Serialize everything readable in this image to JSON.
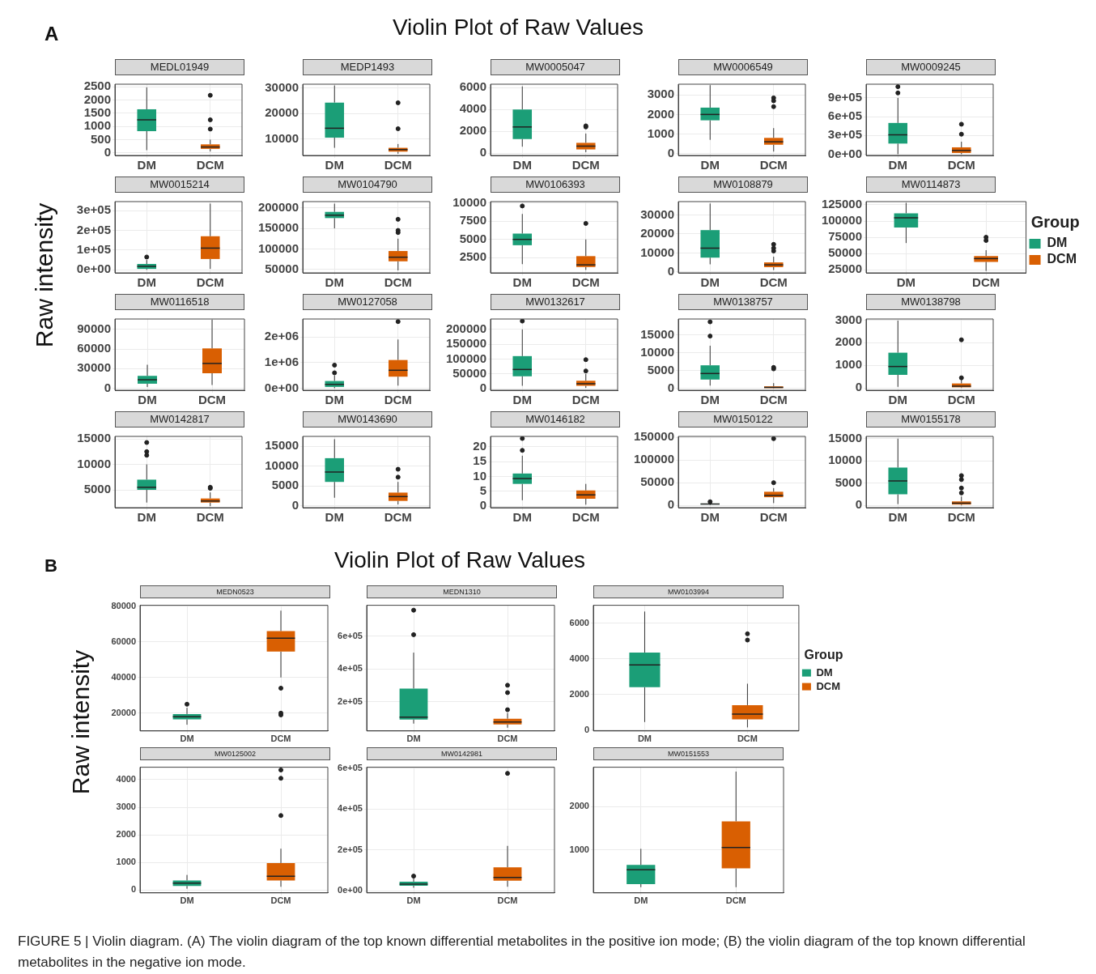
{
  "chart_data": [
    {
      "type": "box",
      "title": "MEDL01949",
      "annotations": [
        "A",
        "Violin Plot of Raw Values"
      ],
      "ylabel": "Raw intensity",
      "categories": [
        "DM",
        "DCM"
      ],
      "grid": true,
      "ylim": [
        -100,
        2600
      ],
      "yticks": [
        0,
        500,
        1000,
        1500,
        2000,
        2500
      ],
      "series": [
        {
          "color": "#1b9e77",
          "boxes": [
            {
              "low": 100,
              "q1": 820,
              "median": 1250,
              "q3": 1650,
              "high": 2480
            },
            null
          ]
        },
        {
          "color": "#d95f02",
          "boxes": [
            null,
            {
              "low": 50,
              "q1": 150,
              "median": 220,
              "q3": 320,
              "high": 500,
              "outliers": [
                900,
                1250,
                2180
              ]
            }
          ]
        }
      ]
    },
    {
      "type": "box",
      "title": "MEDP1493",
      "categories": [
        "DM",
        "DCM"
      ],
      "grid": true,
      "ylim": [
        3500,
        31500
      ],
      "yticks": [
        10000,
        20000,
        30000
      ],
      "series": [
        {
          "color": "#1b9e77",
          "boxes": [
            {
              "low": 6500,
              "q1": 10500,
              "median": 14200,
              "q3": 24300,
              "high": 31000
            },
            null
          ]
        },
        {
          "color": "#d95f02",
          "boxes": [
            null,
            {
              "low": 4200,
              "q1": 5000,
              "median": 5800,
              "q3": 6500,
              "high": 8000,
              "outliers": [
                14000,
                24200
              ]
            }
          ]
        }
      ]
    },
    {
      "type": "box",
      "title": "MW0005047",
      "categories": [
        "DM",
        "DCM"
      ],
      "grid": true,
      "ylim": [
        -200,
        6300
      ],
      "yticks": [
        0,
        2000,
        4000,
        6000
      ],
      "series": [
        {
          "color": "#1b9e77",
          "boxes": [
            {
              "low": 600,
              "q1": 1300,
              "median": 2400,
              "q3": 4000,
              "high": 6100
            },
            null
          ]
        },
        {
          "color": "#d95f02",
          "boxes": [
            null,
            {
              "low": 100,
              "q1": 350,
              "median": 650,
              "q3": 950,
              "high": 1800,
              "outliers": [
                2400,
                2500
              ]
            }
          ]
        }
      ]
    },
    {
      "type": "box",
      "title": "MW0006549",
      "categories": [
        "DM",
        "DCM"
      ],
      "grid": true,
      "ylim": [
        -100,
        3550
      ],
      "yticks": [
        0,
        1000,
        2000,
        3000
      ],
      "series": [
        {
          "color": "#1b9e77",
          "boxes": [
            {
              "low": 700,
              "q1": 1700,
              "median": 2000,
              "q3": 2350,
              "high": 3500
            },
            null
          ]
        },
        {
          "color": "#d95f02",
          "boxes": [
            null,
            {
              "low": 100,
              "q1": 450,
              "median": 600,
              "q3": 800,
              "high": 1300,
              "outliers": [
                2400,
                2700,
                2850
              ]
            }
          ]
        }
      ]
    },
    {
      "type": "box",
      "title": "MW0009245",
      "categories": [
        "DM",
        "DCM"
      ],
      "grid": true,
      "ylim": [
        -20000,
        1120000
      ],
      "yticks": [
        {
          "value": 0,
          "label": "0e+00"
        },
        {
          "value": 300000,
          "label": "3e+05"
        },
        {
          "value": 600000,
          "label": "6e+05"
        },
        {
          "value": 900000,
          "label": "9e+05"
        }
      ],
      "series": [
        {
          "color": "#1b9e77",
          "boxes": [
            {
              "low": 0,
              "q1": 170000,
              "median": 310000,
              "q3": 500000,
              "high": 900000,
              "outliers": [
                980000,
                1080000
              ]
            },
            null
          ]
        },
        {
          "color": "#d95f02",
          "boxes": [
            null,
            {
              "low": 0,
              "q1": 20000,
              "median": 60000,
              "q3": 110000,
              "high": 200000,
              "outliers": [
                320000,
                480000
              ]
            }
          ]
        }
      ]
    },
    {
      "type": "box",
      "title": "MW0015214",
      "categories": [
        "DM",
        "DCM"
      ],
      "grid": true,
      "ylim": [
        -15000,
        345000
      ],
      "yticks": [
        {
          "value": 0,
          "label": "0e+00"
        },
        {
          "value": 100000,
          "label": "1e+05"
        },
        {
          "value": 200000,
          "label": "2e+05"
        },
        {
          "value": 300000,
          "label": "3e+05"
        }
      ],
      "series": [
        {
          "color": "#1b9e77",
          "boxes": [
            {
              "low": 0,
              "q1": 5000,
              "median": 18000,
              "q3": 30000,
              "high": 50000,
              "outliers": [
                65000
              ]
            },
            null
          ]
        },
        {
          "color": "#d95f02",
          "boxes": [
            null,
            {
              "low": 5000,
              "q1": 55000,
              "median": 110000,
              "q3": 170000,
              "high": 335000
            }
          ]
        }
      ]
    },
    {
      "type": "box",
      "title": "MW0104790",
      "categories": [
        "DM",
        "DCM"
      ],
      "grid": true,
      "ylim": [
        42000,
        215000
      ],
      "yticks": [
        50000,
        100000,
        150000,
        200000
      ],
      "series": [
        {
          "color": "#1b9e77",
          "boxes": [
            {
              "low": 150000,
              "q1": 175000,
              "median": 182000,
              "q3": 190000,
              "high": 210000
            },
            null
          ]
        },
        {
          "color": "#d95f02",
          "boxes": [
            null,
            {
              "low": 48000,
              "q1": 70000,
              "median": 80000,
              "q3": 95000,
              "high": 125000,
              "outliers": [
                140000,
                145000,
                172000
              ]
            }
          ]
        }
      ]
    },
    {
      "type": "box",
      "title": "MW0106393",
      "categories": [
        "DM",
        "DCM"
      ],
      "grid": true,
      "ylim": [
        400,
        10200
      ],
      "yticks": [
        2500,
        5000,
        7500,
        10000
      ],
      "series": [
        {
          "color": "#1b9e77",
          "boxes": [
            {
              "low": 1600,
              "q1": 4200,
              "median": 5000,
              "q3": 5800,
              "high": 8500,
              "outliers": [
                9600
              ]
            },
            null
          ]
        },
        {
          "color": "#d95f02",
          "boxes": [
            null,
            {
              "low": 800,
              "q1": 1200,
              "median": 1500,
              "q3": 2700,
              "high": 5000,
              "outliers": [
                7200
              ]
            }
          ]
        }
      ]
    },
    {
      "type": "box",
      "title": "MW0108879",
      "categories": [
        "DM",
        "DCM"
      ],
      "grid": true,
      "ylim": [
        -500,
        37000
      ],
      "yticks": [
        0,
        10000,
        20000,
        30000
      ],
      "series": [
        {
          "color": "#1b9e77",
          "boxes": [
            {
              "low": 4000,
              "q1": 7500,
              "median": 12500,
              "q3": 22000,
              "high": 36000
            },
            null
          ]
        },
        {
          "color": "#d95f02",
          "boxes": [
            null,
            {
              "low": 1000,
              "q1": 2500,
              "median": 3700,
              "q3": 5000,
              "high": 8000,
              "outliers": [
                11000,
                12500,
                14500
              ]
            }
          ]
        }
      ]
    },
    {
      "type": "box",
      "title": "MW0114873",
      "legend": "right",
      "legend_title": "Group",
      "categories": [
        "DM",
        "DCM"
      ],
      "grid": true,
      "ylim": [
        20000,
        130000
      ],
      "yticks": [
        25000,
        50000,
        75000,
        100000,
        125000
      ],
      "series": [
        {
          "name": "DM",
          "color": "#1b9e77",
          "boxes": [
            {
              "low": 66000,
              "q1": 90000,
              "median": 105000,
              "q3": 112000,
              "high": 128000
            },
            null
          ]
        },
        {
          "name": "DCM",
          "color": "#d95f02",
          "boxes": [
            null,
            {
              "low": 23000,
              "q1": 37000,
              "median": 42000,
              "q3": 46000,
              "high": 55000,
              "outliers": [
                70000,
                75000
              ]
            }
          ]
        }
      ]
    },
    {
      "type": "box",
      "title": "MW0116518",
      "categories": [
        "DM",
        "DCM"
      ],
      "grid": true,
      "ylim": [
        -3000,
        106000
      ],
      "yticks": [
        0,
        30000,
        60000,
        90000
      ],
      "series": [
        {
          "color": "#1b9e77",
          "boxes": [
            {
              "low": 2000,
              "q1": 7000,
              "median": 13000,
              "q3": 19000,
              "high": 36000
            },
            null
          ]
        },
        {
          "color": "#d95f02",
          "boxes": [
            null,
            {
              "low": 5000,
              "q1": 23000,
              "median": 38000,
              "q3": 61000,
              "high": 105000
            }
          ]
        }
      ]
    },
    {
      "type": "box",
      "title": "MW0127058",
      "categories": [
        "DM",
        "DCM"
      ],
      "grid": true,
      "ylim": [
        -80000,
        2700000
      ],
      "yticks": [
        {
          "value": 0,
          "label": "0e+00"
        },
        {
          "value": 1000000,
          "label": "1e+06"
        },
        {
          "value": 2000000,
          "label": "2e+06"
        }
      ],
      "series": [
        {
          "color": "#1b9e77",
          "boxes": [
            {
              "low": 0,
              "q1": 50000,
              "median": 150000,
              "q3": 280000,
              "high": 500000,
              "outliers": [
                600000,
                900000
              ]
            },
            null
          ]
        },
        {
          "color": "#d95f02",
          "boxes": [
            null,
            {
              "low": 100000,
              "q1": 450000,
              "median": 700000,
              "q3": 1100000,
              "high": 1900000,
              "outliers": [
                2600000
              ]
            }
          ]
        }
      ]
    },
    {
      "type": "box",
      "title": "MW0132617",
      "categories": [
        "DM",
        "DCM"
      ],
      "grid": true,
      "ylim": [
        -5000,
        235000
      ],
      "yticks": [
        0,
        50000,
        100000,
        150000,
        200000
      ],
      "series": [
        {
          "color": "#1b9e77",
          "boxes": [
            {
              "low": 10000,
              "q1": 42000,
              "median": 65000,
              "q3": 110000,
              "high": 200000,
              "outliers": [
                228000
              ]
            },
            null
          ]
        },
        {
          "color": "#d95f02",
          "boxes": [
            null,
            {
              "low": 3000,
              "q1": 10000,
              "median": 17000,
              "q3": 27000,
              "high": 50000,
              "outliers": [
                60000,
                98000
              ]
            }
          ]
        }
      ]
    },
    {
      "type": "box",
      "title": "MW0138757",
      "categories": [
        "DM",
        "DCM"
      ],
      "grid": true,
      "ylim": [
        -500,
        19500
      ],
      "yticks": [
        0,
        5000,
        10000,
        15000
      ],
      "series": [
        {
          "color": "#1b9e77",
          "boxes": [
            {
              "low": 800,
              "q1": 2500,
              "median": 4200,
              "q3": 6500,
              "high": 12000,
              "outliers": [
                14700,
                18700
              ]
            },
            null
          ]
        },
        {
          "color": "#d95f02",
          "boxes": [
            null,
            {
              "low": 0,
              "q1": 100,
              "median": 300,
              "q3": 600,
              "high": 1500,
              "outliers": [
                5500,
                5900
              ]
            }
          ]
        }
      ]
    },
    {
      "type": "box",
      "title": "MW0138798",
      "categories": [
        "DM",
        "DCM"
      ],
      "grid": true,
      "ylim": [
        -100,
        3050
      ],
      "yticks": [
        0,
        1000,
        2000,
        3000
      ],
      "series": [
        {
          "color": "#1b9e77",
          "boxes": [
            {
              "low": 50,
              "q1": 580,
              "median": 950,
              "q3": 1560,
              "high": 2980
            },
            null
          ]
        },
        {
          "color": "#d95f02",
          "boxes": [
            null,
            {
              "low": 0,
              "q1": 30,
              "median": 80,
              "q3": 200,
              "high": 400,
              "outliers": [
                450,
                2130
              ]
            }
          ]
        }
      ]
    },
    {
      "type": "box",
      "title": "MW0142817",
      "categories": [
        "DM",
        "DCM"
      ],
      "grid": true,
      "ylim": [
        1500,
        15500
      ],
      "yticks": [
        5000,
        10000,
        15000
      ],
      "series": [
        {
          "color": "#1b9e77",
          "boxes": [
            {
              "low": 2500,
              "q1": 5000,
              "median": 5500,
              "q3": 7000,
              "high": 10000,
              "outliers": [
                11800,
                12500,
                14300
              ]
            },
            null
          ]
        },
        {
          "color": "#d95f02",
          "boxes": [
            null,
            {
              "low": 1800,
              "q1": 2500,
              "median": 2800,
              "q3": 3300,
              "high": 4500,
              "outliers": [
                5300,
                5500
              ]
            }
          ]
        }
      ]
    },
    {
      "type": "box",
      "title": "MW0143690",
      "categories": [
        "DM",
        "DCM"
      ],
      "grid": true,
      "ylim": [
        -500,
        17500
      ],
      "yticks": [
        0,
        5000,
        10000,
        15000
      ],
      "series": [
        {
          "color": "#1b9e77",
          "boxes": [
            {
              "low": 2000,
              "q1": 6000,
              "median": 8500,
              "q3": 12000,
              "high": 16800
            },
            null
          ]
        },
        {
          "color": "#d95f02",
          "boxes": [
            null,
            {
              "low": 300,
              "q1": 1200,
              "median": 2300,
              "q3": 3300,
              "high": 6000,
              "outliers": [
                7200,
                9200
              ]
            }
          ]
        }
      ]
    },
    {
      "type": "box",
      "title": "MW0146182",
      "categories": [
        "DM",
        "DCM"
      ],
      "grid": true,
      "ylim": [
        -0.5,
        23.5
      ],
      "yticks": [
        0,
        5,
        10,
        15,
        20
      ],
      "series": [
        {
          "color": "#1b9e77",
          "boxes": [
            {
              "low": 2,
              "q1": 7.5,
              "median": 9.3,
              "q3": 11,
              "high": 17,
              "outliers": [
                18.8,
                22.8
              ]
            },
            null
          ]
        },
        {
          "color": "#d95f02",
          "boxes": [
            null,
            {
              "low": 0.5,
              "q1": 2.5,
              "median": 3.8,
              "q3": 5.3,
              "high": 7.5
            }
          ]
        }
      ]
    },
    {
      "type": "box",
      "title": "MW0150122",
      "categories": [
        "DM",
        "DCM"
      ],
      "grid": true,
      "ylim": [
        -5000,
        152000
      ],
      "yticks": [
        0,
        50000,
        100000,
        150000
      ],
      "series": [
        {
          "color": "#1b9e77",
          "boxes": [
            {
              "low": 500,
              "q1": 2000,
              "median": 3000,
              "q3": 4000,
              "high": 4000,
              "outliers": [
                8000
              ]
            },
            null
          ]
        },
        {
          "color": "#d95f02",
          "boxes": [
            null,
            {
              "low": 5000,
              "q1": 18000,
              "median": 22000,
              "q3": 30000,
              "high": 38000,
              "outliers": [
                50000,
                147000
              ]
            }
          ]
        }
      ]
    },
    {
      "type": "box",
      "title": "MW0155178",
      "categories": [
        "DM",
        "DCM"
      ],
      "grid": true,
      "ylim": [
        -500,
        15500
      ],
      "yticks": [
        0,
        5000,
        10000,
        15000
      ],
      "series": [
        {
          "color": "#1b9e77",
          "boxes": [
            {
              "low": 300,
              "q1": 2500,
              "median": 5500,
              "q3": 8500,
              "high": 15000
            },
            null
          ]
        },
        {
          "color": "#d95f02",
          "boxes": [
            null,
            {
              "low": 0,
              "q1": 200,
              "median": 500,
              "q3": 900,
              "high": 2000,
              "outliers": [
                2800,
                3900,
                5800,
                6700
              ]
            }
          ]
        }
      ]
    },
    {
      "type": "box",
      "title": "MEDN0523",
      "annotations": [
        "B",
        "Violin Plot of Raw Values"
      ],
      "ylabel": "Raw intensity",
      "categories": [
        "DM",
        "DCM"
      ],
      "grid": true,
      "ylim": [
        10000,
        80500
      ],
      "yticks": [
        20000,
        40000,
        60000,
        80000
      ],
      "series": [
        {
          "color": "#1b9e77",
          "boxes": [
            {
              "low": 13500,
              "q1": 16500,
              "median": 18000,
              "q3": 19500,
              "high": 23000,
              "outliers": [
                25000
              ]
            },
            null
          ]
        },
        {
          "color": "#d95f02",
          "boxes": [
            null,
            {
              "low": 40000,
              "q1": 54500,
              "median": 62000,
              "q3": 66000,
              "high": 77500,
              "outliers": [
                19000,
                20000,
                34000
              ]
            }
          ]
        }
      ]
    },
    {
      "type": "box",
      "title": "MEDN1310",
      "categories": [
        "DM",
        "DCM"
      ],
      "grid": true,
      "ylim": [
        20000,
        790000
      ],
      "yticks": [
        {
          "value": 200000,
          "label": "2e+05"
        },
        {
          "value": 400000,
          "label": "4e+05"
        },
        {
          "value": 600000,
          "label": "6e+05"
        }
      ],
      "series": [
        {
          "color": "#1b9e77",
          "boxes": [
            {
              "low": 65000,
              "q1": 90000,
              "median": 105000,
              "q3": 280000,
              "high": 500000,
              "outliers": [
                610000,
                760000
              ]
            },
            null
          ]
        },
        {
          "color": "#d95f02",
          "boxes": [
            null,
            {
              "low": 40000,
              "q1": 60000,
              "median": 75000,
              "q3": 95000,
              "high": 130000,
              "outliers": [
                150000,
                255000,
                300000
              ]
            }
          ]
        }
      ]
    },
    {
      "type": "box",
      "title": "MW0103994",
      "legend": "right",
      "legend_title": "Group",
      "categories": [
        "DM",
        "DCM"
      ],
      "grid": true,
      "ylim": [
        -50,
        7000
      ],
      "yticks": [
        0,
        2000,
        4000,
        6000
      ],
      "series": [
        {
          "name": "DM",
          "color": "#1b9e77",
          "boxes": [
            {
              "low": 450,
              "q1": 2400,
              "median": 3650,
              "q3": 4350,
              "high": 6650
            },
            null
          ]
        },
        {
          "name": "DCM",
          "color": "#d95f02",
          "boxes": [
            null,
            {
              "low": 150,
              "q1": 600,
              "median": 900,
              "q3": 1400,
              "high": 2600,
              "outliers": [
                5050,
                5400
              ]
            }
          ]
        }
      ]
    },
    {
      "type": "box",
      "title": "MW0125002",
      "categories": [
        "DM",
        "DCM"
      ],
      "grid": true,
      "ylim": [
        -100,
        4450
      ],
      "yticks": [
        0,
        1000,
        2000,
        3000,
        4000
      ],
      "series": [
        {
          "color": "#1b9e77",
          "boxes": [
            {
              "low": 50,
              "q1": 150,
              "median": 250,
              "q3": 350,
              "high": 550
            },
            null
          ]
        },
        {
          "color": "#d95f02",
          "boxes": [
            null,
            {
              "low": 120,
              "q1": 350,
              "median": 500,
              "q3": 980,
              "high": 1500,
              "outliers": [
                2700,
                4050,
                4350
              ]
            }
          ]
        }
      ]
    },
    {
      "type": "box",
      "title": "MW0142981",
      "categories": [
        "DM",
        "DCM"
      ],
      "grid": true,
      "ylim": [
        -10000,
        605000
      ],
      "yticks": [
        {
          "value": 0,
          "label": "0e+00"
        },
        {
          "value": 200000,
          "label": "2e+05"
        },
        {
          "value": 400000,
          "label": "4e+05"
        },
        {
          "value": 600000,
          "label": "6e+05"
        }
      ],
      "series": [
        {
          "color": "#1b9e77",
          "boxes": [
            {
              "low": 15000,
              "q1": 25000,
              "median": 33000,
              "q3": 45000,
              "high": 60000,
              "outliers": [
                72000
              ]
            },
            null
          ]
        },
        {
          "color": "#d95f02",
          "boxes": [
            null,
            {
              "low": 20000,
              "q1": 50000,
              "median": 65000,
              "q3": 115000,
              "high": 220000,
              "outliers": [
                575000
              ]
            }
          ]
        }
      ]
    },
    {
      "type": "box",
      "title": "MW0151553",
      "annotations": [
        "FIGURE 5 | Violin diagram. (A) The violin diagram of the top known differential metabolites in the positive ion mode; (B) the violin diagram of the top known differential metabolites in the negative ion mode."
      ],
      "categories": [
        "DM",
        "DCM"
      ],
      "grid": true,
      "ylim": [
        20,
        2900
      ],
      "yticks": [
        1000,
        2000
      ],
      "series": [
        {
          "color": "#1b9e77",
          "boxes": [
            {
              "low": 150,
              "q1": 220,
              "median": 550,
              "q3": 660,
              "high": 1030
            },
            null
          ]
        },
        {
          "color": "#d95f02",
          "boxes": [
            null,
            {
              "low": 150,
              "q1": 580,
              "median": 1060,
              "q3": 1660,
              "high": 2800
            }
          ]
        }
      ]
    }
  ]
}
